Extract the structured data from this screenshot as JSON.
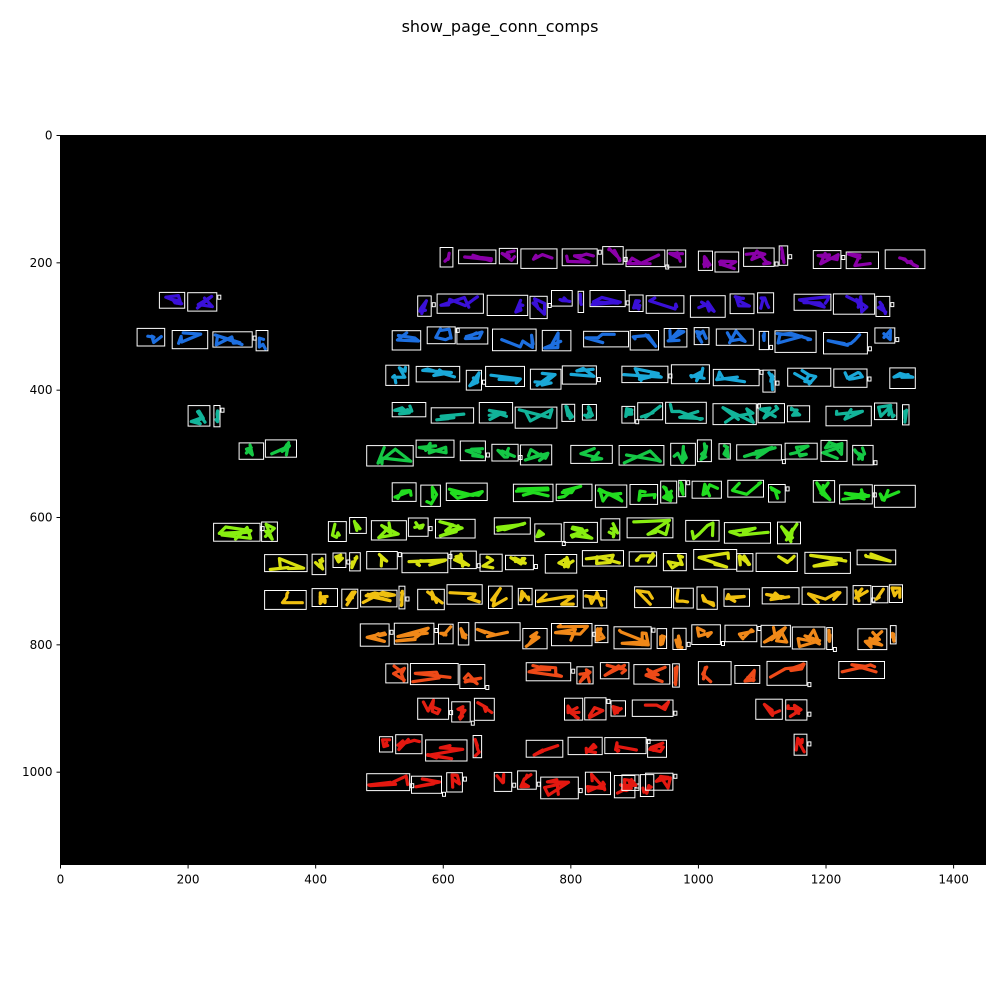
{
  "figure": {
    "title": "show_page_conn_comps"
  },
  "chart_data": {
    "type": "heatmap",
    "title": "show_page_conn_comps",
    "xlabel": "",
    "ylabel": "",
    "xlim": [
      0,
      1450
    ],
    "ylim": [
      1145,
      0
    ],
    "x_ticks": [
      0,
      200,
      400,
      600,
      800,
      1000,
      1200,
      1400
    ],
    "y_ticks": [
      0,
      200,
      400,
      600,
      800,
      1000
    ],
    "background": "#000000",
    "box_color": "#ffffff",
    "rows": [
      {
        "color": "#8a00a8",
        "y": 178,
        "h": 30,
        "segments": [
          [
            595,
            255
          ],
          [
            850,
            130
          ],
          [
            1000,
            140
          ],
          [
            1180,
            175
          ]
        ]
      },
      {
        "color": "#3a10d8",
        "y": 248,
        "h": 34,
        "segments": [
          [
            155,
            90
          ],
          [
            560,
            260
          ],
          [
            830,
            300
          ],
          [
            1150,
            150
          ]
        ]
      },
      {
        "color": "#1d6fe0",
        "y": 305,
        "h": 34,
        "segments": [
          [
            120,
            205
          ],
          [
            520,
            280
          ],
          [
            820,
            290
          ],
          [
            1120,
            195
          ]
        ]
      },
      {
        "color": "#1aa8d8",
        "y": 365,
        "h": 34,
        "segments": [
          [
            510,
            330
          ],
          [
            880,
            240
          ],
          [
            1140,
            140
          ],
          [
            1300,
            40
          ]
        ]
      },
      {
        "color": "#12b49a",
        "y": 423,
        "h": 32,
        "segments": [
          [
            200,
            50
          ],
          [
            520,
            320
          ],
          [
            880,
            300
          ],
          [
            1200,
            130
          ]
        ]
      },
      {
        "color": "#15c845",
        "y": 483,
        "h": 34,
        "segments": [
          [
            280,
            90
          ],
          [
            480,
            290
          ],
          [
            800,
            250
          ],
          [
            1060,
            220
          ]
        ]
      },
      {
        "color": "#22dd20",
        "y": 545,
        "h": 34,
        "segments": [
          [
            520,
            165
          ],
          [
            710,
            270
          ],
          [
            990,
            150
          ],
          [
            1180,
            160
          ]
        ]
      },
      {
        "color": "#88ee10",
        "y": 605,
        "h": 34,
        "segments": [
          [
            240,
            100
          ],
          [
            420,
            230
          ],
          [
            680,
            280
          ],
          [
            980,
            180
          ]
        ]
      },
      {
        "color": "#d8e010",
        "y": 655,
        "h": 32,
        "segments": [
          [
            320,
            150
          ],
          [
            480,
            270
          ],
          [
            760,
            300
          ],
          [
            1060,
            260
          ]
        ]
      },
      {
        "color": "#f0c010",
        "y": 710,
        "h": 34,
        "segments": [
          [
            320,
            220
          ],
          [
            560,
            300
          ],
          [
            900,
            180
          ],
          [
            1100,
            220
          ]
        ]
      },
      {
        "color": "#f08818",
        "y": 770,
        "h": 34,
        "segments": [
          [
            470,
            170
          ],
          [
            650,
            300
          ],
          [
            960,
            250
          ],
          [
            1250,
            60
          ]
        ]
      },
      {
        "color": "#ee4a18",
        "y": 830,
        "h": 36,
        "segments": [
          [
            510,
            160
          ],
          [
            730,
            240
          ],
          [
            1000,
            170
          ],
          [
            1220,
            80
          ]
        ]
      },
      {
        "color": "#e42012",
        "y": 888,
        "h": 34,
        "segments": [
          [
            560,
            120
          ],
          [
            790,
            170
          ],
          [
            1090,
            80
          ]
        ]
      },
      {
        "color": "#e41810",
        "y": 945,
        "h": 34,
        "segments": [
          [
            500,
            160
          ],
          [
            730,
            220
          ],
          [
            1150,
            20
          ]
        ]
      },
      {
        "color": "#e41810",
        "y": 1003,
        "h": 34,
        "segments": [
          [
            480,
            150
          ],
          [
            680,
            250
          ],
          [
            880,
            80
          ]
        ]
      }
    ]
  }
}
